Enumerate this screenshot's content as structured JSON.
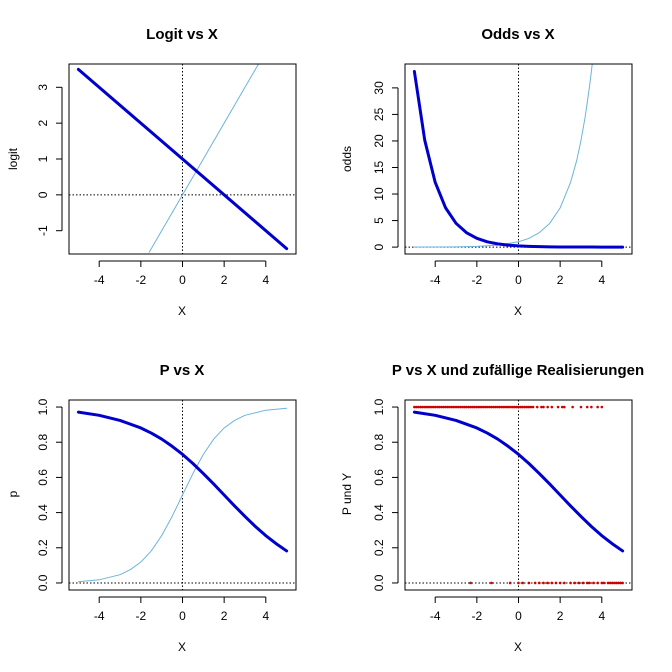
{
  "figure": {
    "colors": {
      "thick": "#0000CD",
      "thin": "#6CB4DC",
      "points": "#CC0000",
      "frame": "#000000"
    }
  },
  "chart_data": [
    {
      "type": "line",
      "title": "Logit vs X",
      "xlabel": "X",
      "ylabel": "logit",
      "xlim": [
        -5.45,
        5.45
      ],
      "ylim": [
        -1.65,
        3.65
      ],
      "xticks": [
        -4,
        -2,
        0,
        2,
        4
      ],
      "yticks": [
        -1,
        0,
        1,
        2,
        3
      ],
      "xtick_labels": [
        "-4",
        "-2",
        "0",
        "2",
        "4"
      ],
      "ytick_labels": [
        "-1",
        "0",
        "1",
        "2",
        "3"
      ],
      "reference_lines": {
        "vertical_x": 0,
        "horizontal_y": 0,
        "style": "dotted"
      },
      "series": [
        {
          "style": "thick",
          "x": [
            -5,
            5
          ],
          "y": [
            3.5,
            -1.5
          ]
        },
        {
          "style": "thin",
          "x": [
            -1.6,
            3.8
          ],
          "y": [
            -1.6,
            3.8
          ]
        }
      ]
    },
    {
      "type": "line",
      "title": "Odds vs X",
      "xlabel": "X",
      "ylabel": "odds",
      "xlim": [
        -5.45,
        5.45
      ],
      "ylim": [
        -1.3,
        34.5
      ],
      "xticks": [
        -4,
        -2,
        0,
        2,
        4
      ],
      "yticks": [
        0,
        5,
        10,
        15,
        20,
        25,
        30
      ],
      "xtick_labels": [
        "-4",
        "-2",
        "0",
        "2",
        "4"
      ],
      "ytick_labels": [
        "0",
        "5",
        "10",
        "15",
        "20",
        "25",
        "30"
      ],
      "reference_lines": {
        "vertical_x": 0,
        "horizontal_y": 0,
        "style": "dotted"
      },
      "series": [
        {
          "style": "thick",
          "x": [
            -5,
            -4.5,
            -4,
            -3.5,
            -3,
            -2.5,
            -2,
            -1.5,
            -1,
            -0.5,
            0,
            0.5,
            1,
            1.5,
            2,
            2.5,
            3,
            3.5,
            4,
            4.5,
            5
          ],
          "y": [
            33.1,
            20.1,
            12.2,
            7.39,
            4.48,
            2.72,
            1.65,
            1.0,
            0.61,
            0.37,
            0.22,
            0.14,
            0.08,
            0.05,
            0.03,
            0.02,
            0.01,
            0.007,
            0.004,
            0.003,
            0.002
          ]
        },
        {
          "style": "thin",
          "x": [
            -5,
            -4,
            -3,
            -2,
            -1,
            0,
            0.5,
            1,
            1.5,
            2,
            2.5,
            2.8,
            3,
            3.2,
            3.4,
            3.5,
            3.6
          ],
          "y": [
            0.007,
            0.018,
            0.05,
            0.14,
            0.37,
            1.0,
            1.65,
            2.72,
            4.48,
            7.39,
            12.2,
            16.4,
            20.1,
            24.5,
            30.0,
            33.1,
            36.6
          ]
        }
      ]
    },
    {
      "type": "line",
      "title": "P vs X",
      "xlabel": "X",
      "ylabel": "p",
      "xlim": [
        -5.45,
        5.45
      ],
      "ylim": [
        -0.04,
        1.04
      ],
      "xticks": [
        -4,
        -2,
        0,
        2,
        4
      ],
      "yticks": [
        0,
        0.2,
        0.4,
        0.6,
        0.8,
        1.0
      ],
      "xtick_labels": [
        "-4",
        "-2",
        "0",
        "2",
        "4"
      ],
      "ytick_labels": [
        "0.0",
        "0.2",
        "0.4",
        "0.6",
        "0.8",
        "1.0"
      ],
      "reference_lines": {
        "vertical_x": 0,
        "horizontal_y": 0,
        "style": "dotted"
      },
      "series": [
        {
          "style": "thick",
          "x": [
            -5,
            -4,
            -3,
            -2,
            -1.5,
            -1,
            -0.5,
            0,
            0.5,
            1,
            1.5,
            2,
            2.5,
            3,
            3.5,
            4,
            4.5,
            5
          ],
          "y": [
            0.971,
            0.953,
            0.924,
            0.881,
            0.852,
            0.818,
            0.777,
            0.731,
            0.679,
            0.622,
            0.562,
            0.5,
            0.438,
            0.378,
            0.321,
            0.269,
            0.223,
            0.182
          ]
        },
        {
          "style": "thin",
          "x": [
            -5,
            -4,
            -3,
            -2.5,
            -2,
            -1.5,
            -1,
            -0.5,
            0,
            0.5,
            1,
            1.5,
            2,
            2.5,
            3,
            4,
            5
          ],
          "y": [
            0.007,
            0.018,
            0.047,
            0.076,
            0.119,
            0.182,
            0.269,
            0.378,
            0.5,
            0.622,
            0.731,
            0.818,
            0.881,
            0.924,
            0.953,
            0.982,
            0.993
          ]
        }
      ]
    },
    {
      "type": "scatter",
      "title": "P vs X und zufällige Realisierungen",
      "xlabel": "X",
      "ylabel": "P und Y",
      "xlim": [
        -5.45,
        5.45
      ],
      "ylim": [
        -0.04,
        1.04
      ],
      "xticks": [
        -4,
        -2,
        0,
        2,
        4
      ],
      "yticks": [
        0,
        0.2,
        0.4,
        0.6,
        0.8,
        1.0
      ],
      "xtick_labels": [
        "-4",
        "-2",
        "0",
        "2",
        "4"
      ],
      "ytick_labels": [
        "0.0",
        "0.2",
        "0.4",
        "0.6",
        "0.8",
        "1.0"
      ],
      "reference_lines": {
        "vertical_x": 0,
        "horizontal_y": 0,
        "style": "dotted"
      },
      "series": [
        {
          "style": "thick",
          "x": [
            -5,
            -4,
            -3,
            -2,
            -1.5,
            -1,
            -0.5,
            0,
            0.5,
            1,
            1.5,
            2,
            2.5,
            3,
            3.5,
            4,
            4.5,
            5
          ],
          "y": [
            0.971,
            0.953,
            0.924,
            0.881,
            0.852,
            0.818,
            0.777,
            0.731,
            0.679,
            0.622,
            0.562,
            0.5,
            0.438,
            0.378,
            0.321,
            0.269,
            0.223,
            0.182
          ]
        }
      ],
      "points_y1": [
        -5,
        -4.9,
        -4.8,
        -4.7,
        -4.6,
        -4.5,
        -4.4,
        -4.3,
        -4.2,
        -4.1,
        -4,
        -3.9,
        -3.8,
        -3.7,
        -3.6,
        -3.5,
        -3.4,
        -3.3,
        -3.2,
        -3.1,
        -3,
        -2.9,
        -2.8,
        -2.7,
        -2.6,
        -2.5,
        -2.4,
        -2.3,
        -2.2,
        -2.1,
        -2,
        -1.9,
        -1.8,
        -1.7,
        -1.6,
        -1.5,
        -1.4,
        -1.3,
        -1.2,
        -1.1,
        -1,
        -0.9,
        -0.8,
        -0.7,
        -0.6,
        -0.5,
        -0.4,
        -0.3,
        -0.2,
        -0.1,
        0,
        0.1,
        0.2,
        0.3,
        0.4,
        0.5,
        0.6,
        0.7,
        0.9,
        1.1,
        1.2,
        1.4,
        1.6,
        1.9,
        2.1,
        2.2,
        2.6,
        3,
        3.3,
        3.5,
        3.8,
        4
      ],
      "points_y0": [
        -2.3,
        -1.3,
        -0.4,
        0,
        0.2,
        0.5,
        0.8,
        1,
        1.2,
        1.4,
        1.6,
        1.8,
        2,
        2.2,
        2.5,
        2.7,
        2.9,
        3.1,
        3.3,
        3.4,
        3.6,
        3.8,
        4,
        4.1,
        4.3,
        4.4,
        4.5,
        4.6,
        4.7,
        4.8,
        4.9,
        5
      ]
    }
  ]
}
